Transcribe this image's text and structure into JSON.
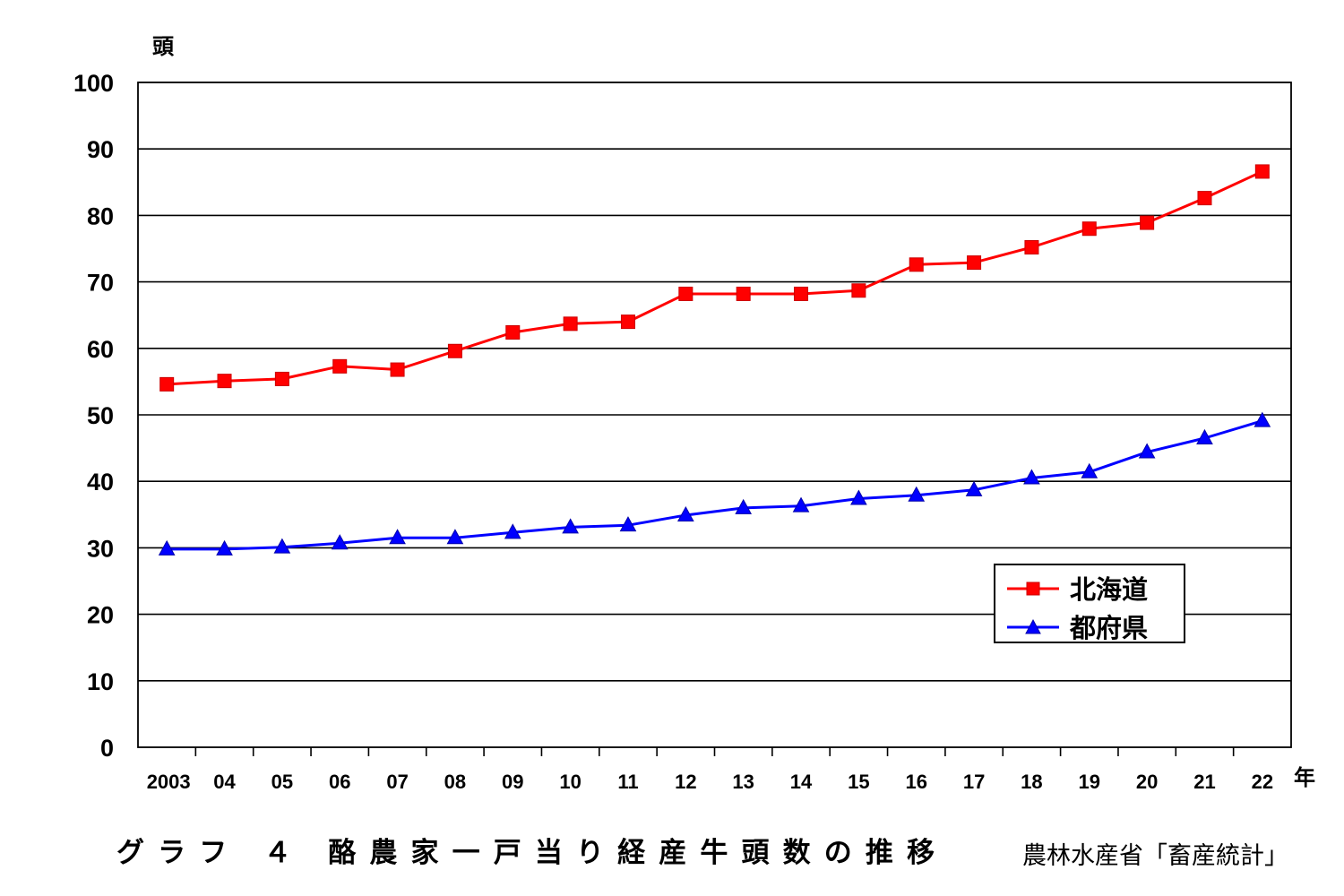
{
  "chart_data": {
    "type": "line",
    "y_unit_label": "頭",
    "x_unit_label": "年",
    "categories": [
      "2003",
      "04",
      "05",
      "06",
      "07",
      "08",
      "09",
      "10",
      "11",
      "12",
      "13",
      "14",
      "15",
      "16",
      "17",
      "18",
      "19",
      "20",
      "21",
      "22"
    ],
    "ylim": [
      0,
      100
    ],
    "yticks": [
      0,
      10,
      20,
      30,
      40,
      50,
      60,
      70,
      80,
      90,
      100
    ],
    "grid": true,
    "legend_position": "lower-right",
    "series": [
      {
        "name": "北海道",
        "color": "#ff0000",
        "marker": "square",
        "values": [
          54.6,
          55.1,
          55.4,
          57.3,
          56.8,
          59.6,
          62.4,
          63.7,
          64.0,
          68.2,
          68.2,
          68.2,
          68.7,
          72.6,
          72.9,
          75.2,
          78.0,
          78.9,
          82.6,
          86.6
        ]
      },
      {
        "name": "都府県",
        "color": "#0000ff",
        "marker": "triangle",
        "values": [
          29.8,
          29.8,
          30.1,
          30.7,
          31.5,
          31.5,
          32.3,
          33.1,
          33.4,
          34.9,
          36.0,
          36.3,
          37.4,
          37.9,
          38.7,
          40.5,
          41.4,
          44.4,
          46.5,
          49.1
        ]
      }
    ]
  },
  "caption": {
    "title": "グラフ ４ 酪農家一戸当り経産牛頭数の推移",
    "source": "農林水産省「畜産統計」"
  }
}
